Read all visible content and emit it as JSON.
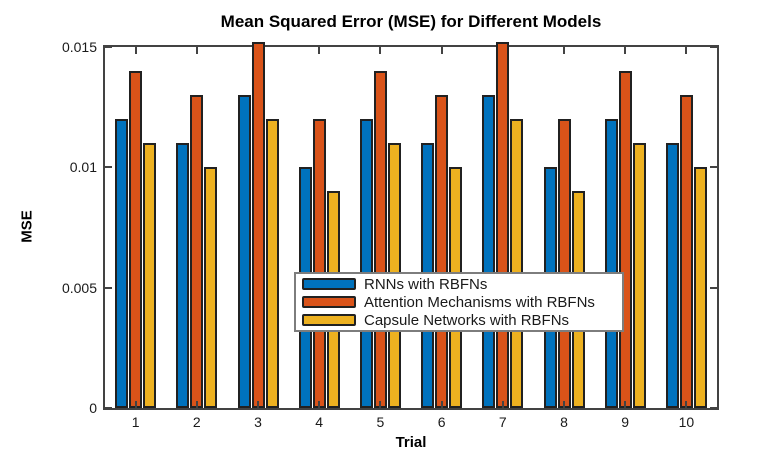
{
  "chart_data": {
    "type": "bar",
    "title": "Mean Squared Error (MSE) for Different Models",
    "xlabel": "Trial",
    "ylabel": "MSE",
    "categories": [
      "1",
      "2",
      "3",
      "4",
      "5",
      "6",
      "7",
      "8",
      "9",
      "10"
    ],
    "series": [
      {
        "name": "RNNs with RBFNs",
        "color": "#0072BD",
        "values": [
          0.012,
          0.011,
          0.013,
          0.01,
          0.012,
          0.011,
          0.013,
          0.01,
          0.012,
          0.011
        ]
      },
      {
        "name": "Attention Mechanisms with RBFNs",
        "color": "#D95319",
        "values": [
          0.014,
          0.013,
          0.015,
          0.012,
          0.014,
          0.013,
          0.015,
          0.012,
          0.014,
          0.013
        ]
      },
      {
        "name": "Capsule Networks with RBFNs",
        "color": "#EDB120",
        "values": [
          0.011,
          0.01,
          0.012,
          0.009,
          0.011,
          0.01,
          0.012,
          0.009,
          0.011,
          0.01
        ]
      }
    ],
    "ylim": [
      0,
      0.015
    ],
    "yticks": [
      0,
      0.005,
      0.01,
      0.015
    ],
    "ytick_labels": [
      "0",
      "0.005",
      "0.01",
      "0.015"
    ],
    "legend_position": "center",
    "grid": false,
    "axis_color": "#434343",
    "bar_edge_color": "#212121"
  }
}
